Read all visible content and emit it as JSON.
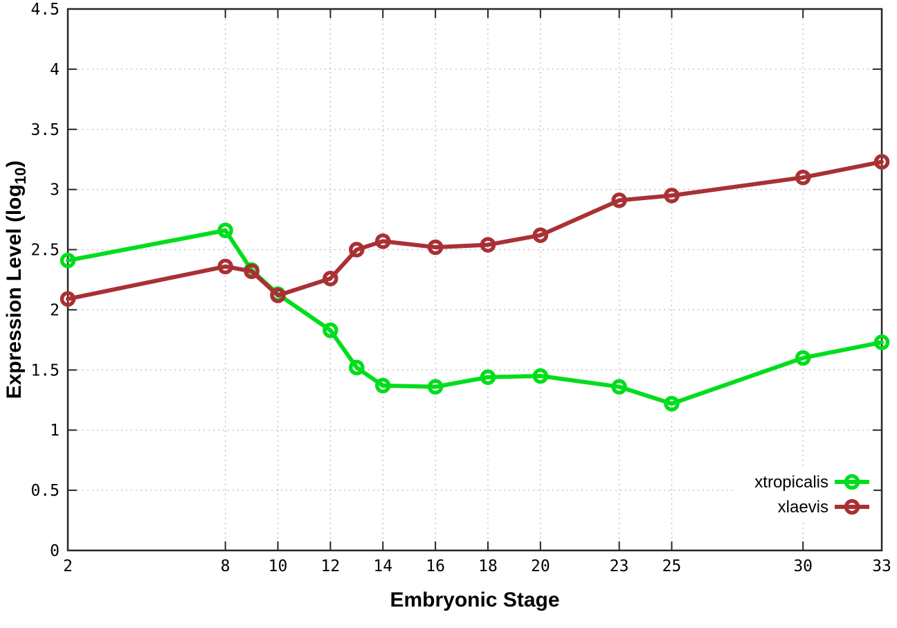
{
  "figure": {
    "background": "#ffffff",
    "border_color": "#262626",
    "grid_color": "#bcbcbc",
    "tick_label_color": "#000000"
  },
  "chart_data": {
    "type": "line",
    "title": "",
    "xlabel": "Embryonic Stage",
    "ylabel": "Expression Level (log10)",
    "ylabel_parts": {
      "main": "Expression Level (log",
      "sub": "10",
      "end": ")"
    },
    "xlim": [
      2,
      33
    ],
    "ylim": [
      0,
      4.5
    ],
    "x_ticks": [
      2,
      8,
      10,
      12,
      14,
      16,
      18,
      20,
      23,
      25,
      30,
      33
    ],
    "y_ticks": [
      0,
      0.5,
      1,
      1.5,
      2,
      2.5,
      3,
      3.5,
      4,
      4.5
    ],
    "grid": true,
    "legend_position": "bottom-right",
    "x": [
      2,
      8,
      9,
      10,
      12,
      13,
      14,
      16,
      18,
      20,
      23,
      25,
      30,
      33
    ],
    "series": [
      {
        "name": "xtropicalis",
        "color": "#00DD1C",
        "values": [
          2.41,
          2.66,
          2.33,
          2.13,
          1.83,
          1.52,
          1.37,
          1.36,
          1.44,
          1.45,
          1.36,
          1.22,
          1.6,
          1.73
        ]
      },
      {
        "name": "xlaevis",
        "color": "#A93034",
        "values": [
          2.09,
          2.36,
          2.32,
          2.12,
          2.26,
          2.5,
          2.57,
          2.52,
          2.54,
          2.62,
          2.91,
          2.95,
          3.1,
          3.23
        ]
      }
    ]
  }
}
